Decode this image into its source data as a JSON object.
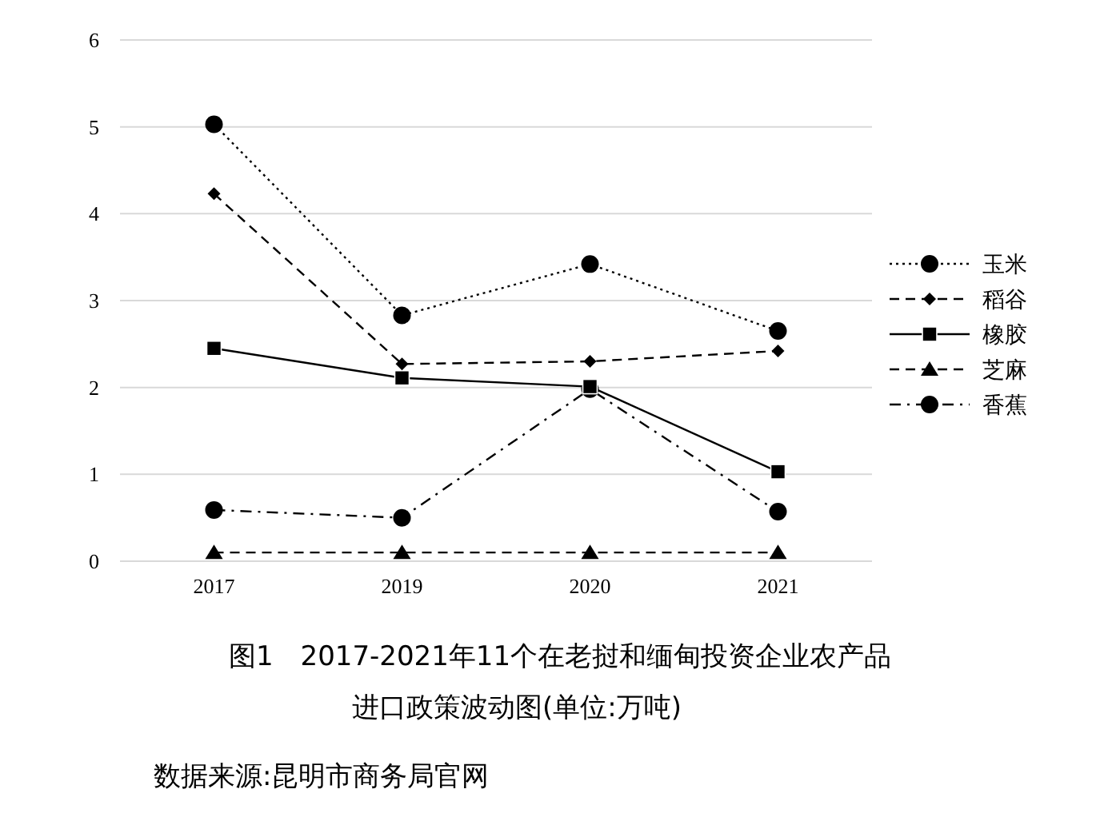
{
  "chart_data": {
    "type": "line",
    "title": "图1　2017-2021年11个在老挝和缅甸投资企业农产品进口政策波动图(单位:万吨)",
    "annotations": [
      "数据来源:昆明市商务局官网"
    ],
    "categories": [
      "2017",
      "2019",
      "2020",
      "2021"
    ],
    "series": [
      {
        "name": "玉米",
        "color": "#000000",
        "marker": "circle",
        "line_style": "dotted",
        "values": [
          5.03,
          2.83,
          3.42,
          2.65
        ]
      },
      {
        "name": "稻谷",
        "color": "#000000",
        "marker": "diamond",
        "line_style": "dashed",
        "values": [
          4.23,
          2.27,
          2.3,
          2.42
        ]
      },
      {
        "name": "橡胶",
        "color": "#000000",
        "marker": "square",
        "line_style": "solid",
        "values": [
          2.45,
          2.11,
          2.01,
          1.03
        ]
      },
      {
        "name": "芝麻",
        "color": "#000000",
        "marker": "triangle",
        "line_style": "dashed",
        "values": [
          0.1,
          0.1,
          0.1,
          0.1
        ]
      },
      {
        "name": "香蕉",
        "color": "#000000",
        "marker": "circle",
        "line_style": "dashdot",
        "values": [
          0.59,
          0.5,
          1.98,
          0.57
        ]
      }
    ],
    "ylim": [
      0,
      6
    ],
    "yticks": [
      0,
      1,
      2,
      3,
      4,
      5,
      6
    ],
    "grid": "y",
    "legend": "right"
  }
}
